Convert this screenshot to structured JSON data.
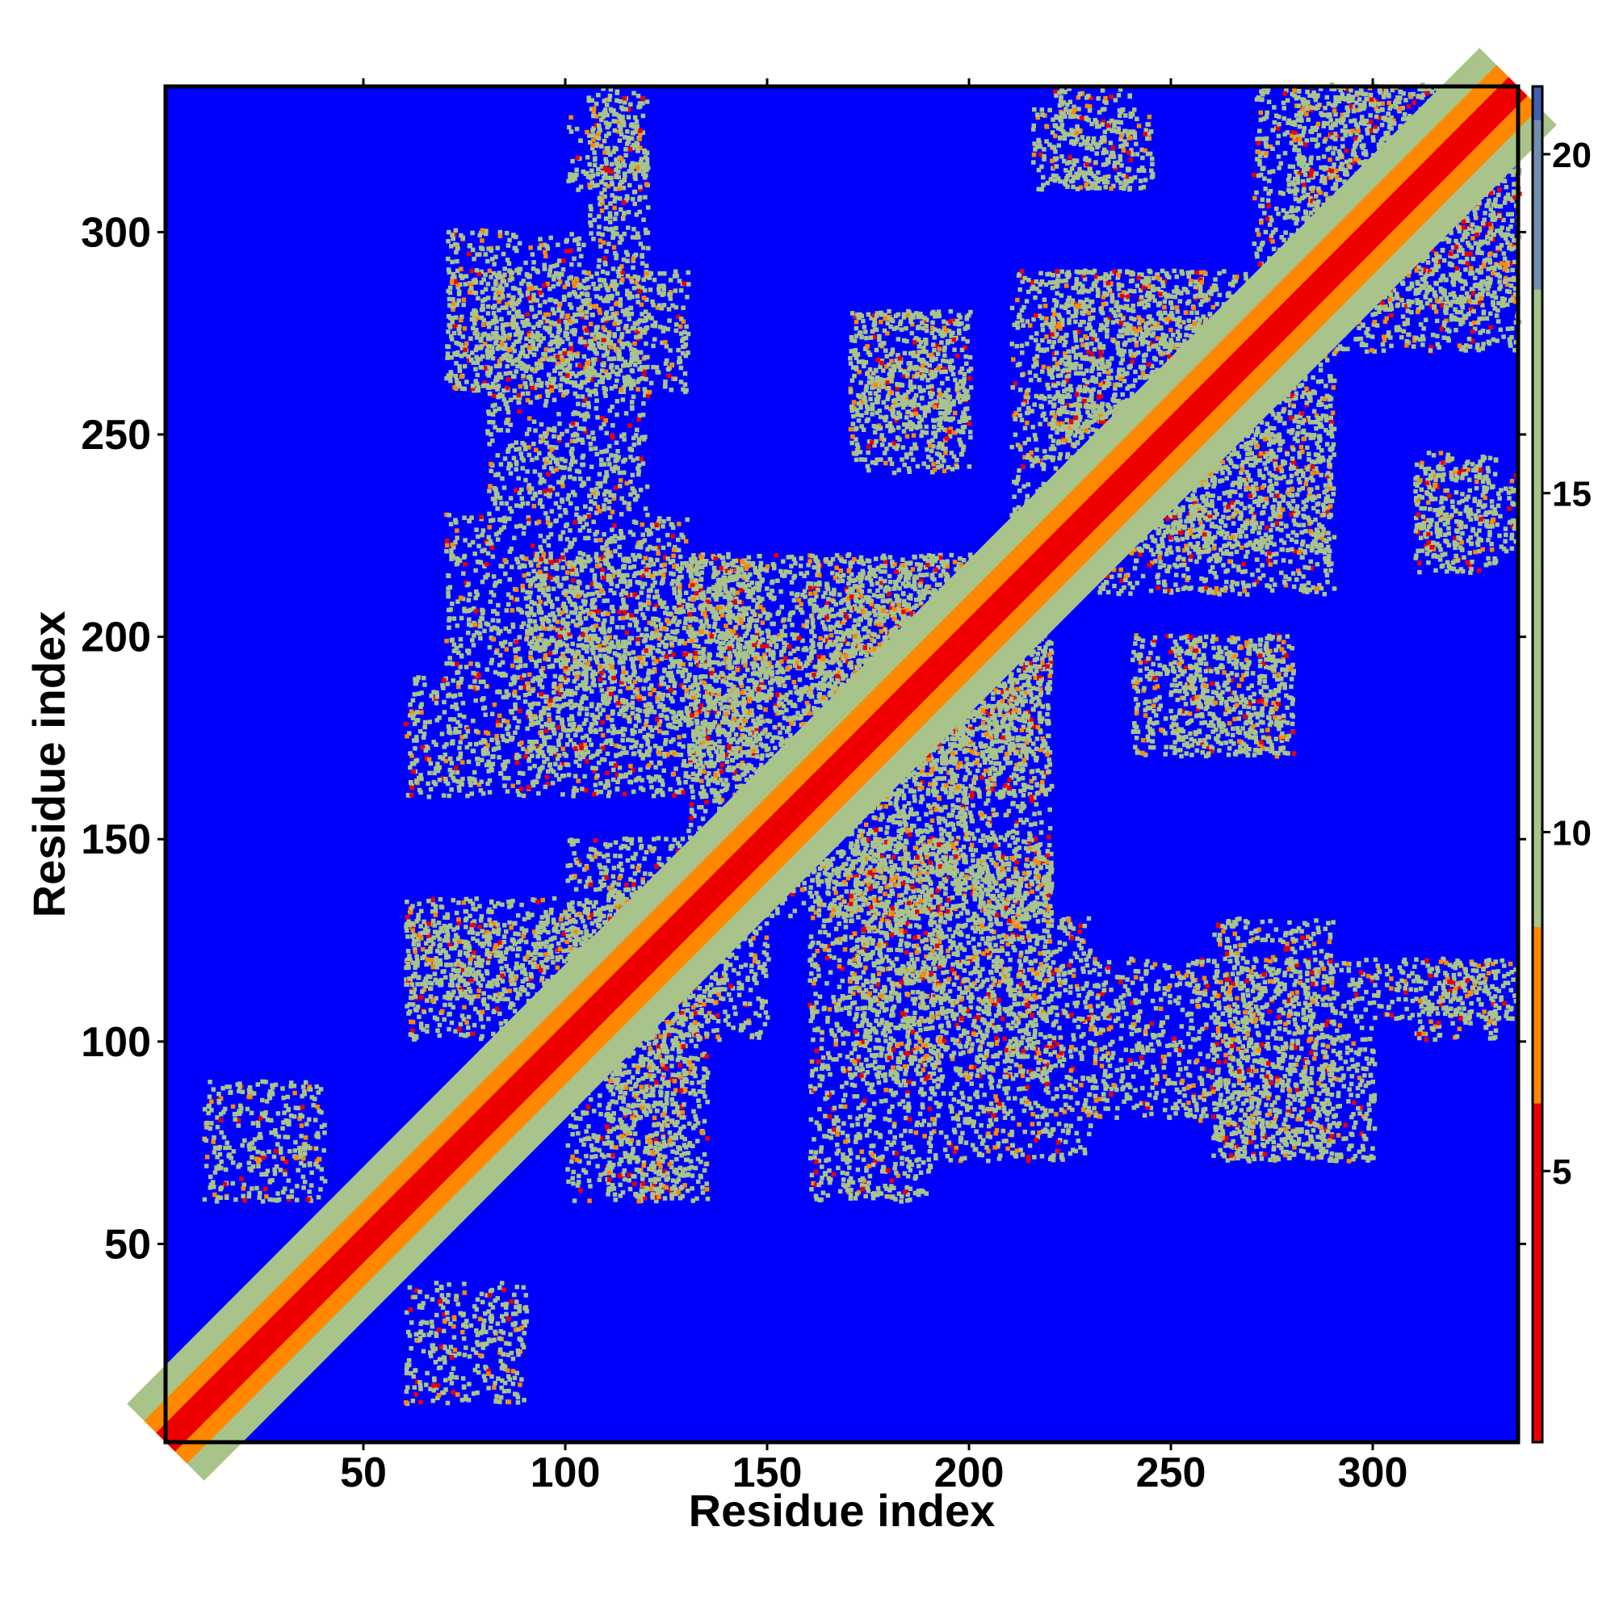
{
  "chart_data": {
    "type": "heatmap",
    "title": "",
    "xlabel": "Residue index",
    "ylabel": "Residue index",
    "xlim": [
      1,
      336
    ],
    "ylim": [
      1,
      336
    ],
    "x_ticks": [
      50,
      100,
      150,
      200,
      250,
      300
    ],
    "y_ticks": [
      50,
      100,
      150,
      200,
      250,
      300
    ],
    "colorbar": {
      "range": [
        1,
        21
      ],
      "ticks": [
        5,
        10,
        15,
        20
      ],
      "colors": {
        "near": "#ee0000",
        "mid": "#ff8800",
        "contact": "#a8c48a",
        "far": "#0000ff",
        "top": "#4060b0"
      }
    },
    "value_description": "symmetric residue-residue distance map; low values red/orange, high values blue",
    "diagonal_band_width": 3,
    "contact_regions": [
      {
        "x": [
          60,
          90
        ],
        "y": [
          10,
          40
        ]
      },
      {
        "x": [
          100,
          130
        ],
        "y": [
          60,
          120
        ]
      },
      {
        "x": [
          110,
          150
        ],
        "y": [
          100,
          140
        ]
      },
      {
        "x": [
          60,
          130
        ],
        "y": [
          110,
          135
        ]
      },
      {
        "x": [
          160,
          190
        ],
        "y": [
          60,
          140
        ]
      },
      {
        "x": [
          190,
          230
        ],
        "y": [
          70,
          130
        ]
      },
      {
        "x": [
          200,
          220
        ],
        "y": [
          130,
          145
        ]
      },
      {
        "x": [
          230,
          260
        ],
        "y": [
          80,
          120
        ]
      },
      {
        "x": [
          260,
          290
        ],
        "y": [
          70,
          130
        ]
      },
      {
        "x": [
          300,
          335
        ],
        "y": [
          105,
          120
        ]
      },
      {
        "x": [
          90,
          150
        ],
        "y": [
          170,
          220
        ]
      },
      {
        "x": [
          130,
          200
        ],
        "y": [
          140,
          220
        ]
      },
      {
        "x": [
          170,
          220
        ],
        "y": [
          160,
          215
        ]
      },
      {
        "x": [
          240,
          280
        ],
        "y": [
          170,
          200
        ]
      },
      {
        "x": [
          310,
          335
        ],
        "y": [
          220,
          240
        ]
      },
      {
        "x": [
          70,
          120
        ],
        "y": [
          260,
          300
        ]
      },
      {
        "x": [
          170,
          200
        ],
        "y": [
          250,
          280
        ]
      },
      {
        "x": [
          210,
          260
        ],
        "y": [
          220,
          290
        ]
      },
      {
        "x": [
          250,
          290
        ],
        "y": [
          220,
          270
        ]
      },
      {
        "x": [
          215,
          245
        ],
        "y": [
          310,
          330
        ]
      },
      {
        "x": [
          270,
          335
        ],
        "y": [
          280,
          336
        ]
      },
      {
        "x": [
          100,
          120
        ],
        "y": [
          310,
          330
        ]
      }
    ]
  }
}
